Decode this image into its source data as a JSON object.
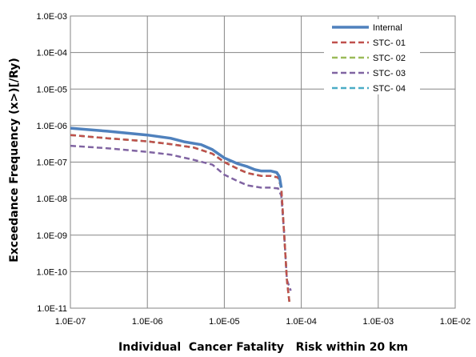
{
  "chart_data": {
    "type": "line",
    "xlabel": "Individual  Cancer Fatality   Risk within 20 km",
    "ylabel": "Exceedance Frequency (x>)[/Ry)",
    "xscale": "log",
    "yscale": "log",
    "xlim": [
      1e-07,
      0.01
    ],
    "ylim": [
      1e-11,
      0.001
    ],
    "x_ticks": [
      "1.0E-07",
      "1.0E-06",
      "1.0E-05",
      "1.0E-04",
      "1.0E-03",
      "1.0E-02"
    ],
    "y_ticks": [
      "1.0E-03",
      "1.0E-04",
      "1.0E-05",
      "1.0E-06",
      "1.0E-07",
      "1.0E-08",
      "1.0E-09",
      "1.0E-10",
      "1.0E-11"
    ],
    "grid": true,
    "legend_position": "top-right",
    "series": [
      {
        "name": "Internal",
        "color": "#4f81bd",
        "style": "solid",
        "points": [
          [
            1e-07,
            8.5e-07
          ],
          [
            3e-07,
            7e-07
          ],
          [
            1e-06,
            5.5e-07
          ],
          [
            2e-06,
            4.5e-07
          ],
          [
            3e-06,
            3.6e-07
          ],
          [
            5e-06,
            3e-07
          ],
          [
            7e-06,
            2.2e-07
          ],
          [
            1e-05,
            1.3e-07
          ],
          [
            1.5e-05,
            9e-08
          ],
          [
            2e-05,
            7.5e-08
          ],
          [
            2.5e-05,
            6.2e-08
          ],
          [
            3e-05,
            5.7e-08
          ],
          [
            4e-05,
            5.7e-08
          ],
          [
            4.8e-05,
            5.2e-08
          ],
          [
            5.2e-05,
            4e-08
          ],
          [
            5.5e-05,
            2e-08
          ]
        ]
      },
      {
        "name": "STC- 01",
        "color": "#c0504d",
        "style": "dashed",
        "points": [
          [
            1e-07,
            5.5e-07
          ],
          [
            3e-07,
            4.5e-07
          ],
          [
            1e-06,
            3.7e-07
          ],
          [
            2e-06,
            3.1e-07
          ],
          [
            4e-06,
            2.5e-07
          ],
          [
            7e-06,
            1.7e-07
          ],
          [
            1e-05,
            1e-07
          ],
          [
            1.5e-05,
            6.5e-08
          ],
          [
            2e-05,
            5e-08
          ],
          [
            3e-05,
            4.2e-08
          ],
          [
            4e-05,
            4.2e-08
          ],
          [
            5e-05,
            3.8e-08
          ],
          [
            5.5e-05,
            2e-08
          ],
          [
            6e-05,
            1e-09
          ],
          [
            6.5e-05,
            6e-11
          ],
          [
            7e-05,
            1.5e-11
          ]
        ]
      },
      {
        "name": "STC- 02",
        "color": "#9bbb59",
        "style": "dashed",
        "points": [
          [
            1e-07,
            5.5e-07
          ],
          [
            3e-07,
            4.5e-07
          ],
          [
            1e-06,
            3.7e-07
          ],
          [
            2e-06,
            3.1e-07
          ],
          [
            4e-06,
            2.5e-07
          ],
          [
            7e-06,
            1.7e-07
          ],
          [
            1e-05,
            1e-07
          ],
          [
            1.5e-05,
            6.5e-08
          ],
          [
            2e-05,
            5e-08
          ],
          [
            3e-05,
            4.2e-08
          ],
          [
            4e-05,
            4.2e-08
          ],
          [
            5e-05,
            3.8e-08
          ],
          [
            5.5e-05,
            2e-08
          ],
          [
            6e-05,
            1e-09
          ],
          [
            6.5e-05,
            6e-11
          ],
          [
            7e-05,
            1.5e-11
          ]
        ]
      },
      {
        "name": "STC- 03",
        "color": "#8064a2",
        "style": "dashed",
        "points": [
          [
            1e-07,
            2.8e-07
          ],
          [
            3e-07,
            2.4e-07
          ],
          [
            1e-06,
            1.9e-07
          ],
          [
            2e-06,
            1.6e-07
          ],
          [
            4e-06,
            1.15e-07
          ],
          [
            7e-06,
            8.5e-08
          ],
          [
            1e-05,
            4.5e-08
          ],
          [
            1.5e-05,
            3e-08
          ],
          [
            2e-05,
            2.3e-08
          ],
          [
            3e-05,
            2e-08
          ],
          [
            4e-05,
            2e-08
          ],
          [
            5e-05,
            1.9e-08
          ],
          [
            5.5e-05,
            1.2e-08
          ],
          [
            6e-05,
            1e-09
          ],
          [
            6.5e-05,
            6e-11
          ],
          [
            7.3e-05,
            3e-11
          ]
        ]
      },
      {
        "name": "STC- 04",
        "color": "#4bacc6",
        "style": "dashed",
        "points": [
          [
            1e-07,
            5.5e-07
          ],
          [
            3e-07,
            4.5e-07
          ],
          [
            1e-06,
            3.7e-07
          ],
          [
            2e-06,
            3.1e-07
          ],
          [
            4e-06,
            2.5e-07
          ],
          [
            7e-06,
            1.7e-07
          ],
          [
            1e-05,
            1e-07
          ],
          [
            1.5e-05,
            6.5e-08
          ],
          [
            2e-05,
            5e-08
          ],
          [
            3e-05,
            4.2e-08
          ],
          [
            4e-05,
            4.2e-08
          ],
          [
            5e-05,
            3.8e-08
          ],
          [
            5.5e-05,
            2e-08
          ],
          [
            6e-05,
            1e-09
          ],
          [
            6.5e-05,
            6e-11
          ],
          [
            7e-05,
            1.5e-11
          ]
        ]
      }
    ]
  }
}
